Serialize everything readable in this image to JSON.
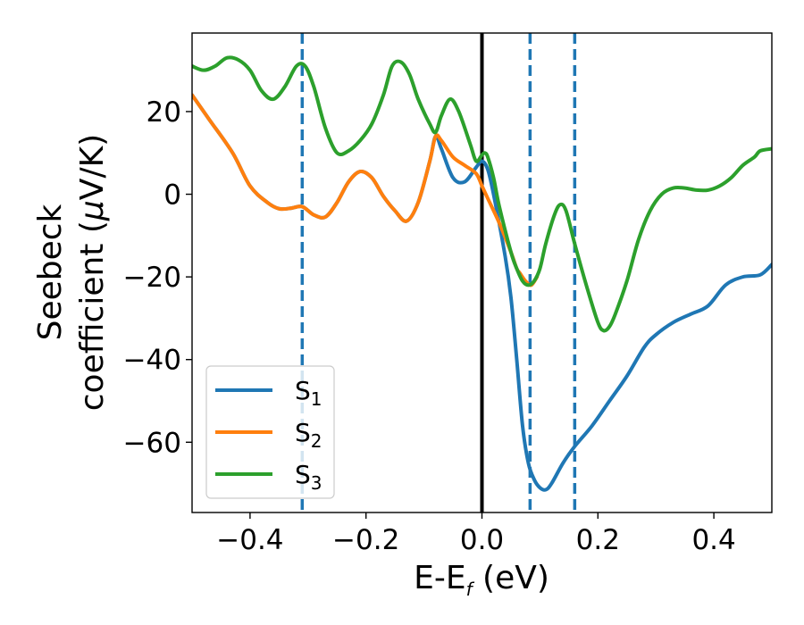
{
  "chart_data": {
    "type": "line",
    "xlabel": {
      "main": "E-E",
      "sub": "f",
      "unit": " (eV)"
    },
    "ylabel": {
      "line1": "Seebeck",
      "line2_text": "coefficient  (",
      "line2_symbol": "μ",
      "line2_unit": "V/K)"
    },
    "xlim": [
      -0.5,
      0.5
    ],
    "ylim": [
      -77,
      39
    ],
    "xticks": [
      {
        "value": -0.4,
        "label": "−0.4"
      },
      {
        "value": -0.2,
        "label": "−0.2"
      },
      {
        "value": 0.0,
        "label": "0.0"
      },
      {
        "value": 0.2,
        "label": "0.2"
      },
      {
        "value": 0.4,
        "label": "0.4"
      }
    ],
    "yticks": [
      {
        "value": 20,
        "label": "20"
      },
      {
        "value": 0,
        "label": "0"
      },
      {
        "value": -20,
        "label": "−20"
      },
      {
        "value": -40,
        "label": "−40"
      },
      {
        "value": -60,
        "label": "−60"
      }
    ],
    "grid": false,
    "legend_position": "lower-left",
    "reference_lines": [
      {
        "type": "solid",
        "x": 0.0,
        "color": "#000000"
      },
      {
        "type": "dashed",
        "x": -0.31,
        "color": "#1f77b4"
      },
      {
        "type": "dashed",
        "x": 0.083,
        "color": "#1f77b4"
      },
      {
        "type": "dashed",
        "x": 0.16,
        "color": "#1f77b4"
      }
    ],
    "series": [
      {
        "name": "S",
        "sub": "1",
        "color": "#1f77b4",
        "points": [
          [
            -0.5,
            24
          ],
          [
            -0.47,
            18
          ],
          [
            -0.43,
            10
          ],
          [
            -0.4,
            2
          ],
          [
            -0.37,
            -2
          ],
          [
            -0.35,
            -3.5
          ],
          [
            -0.33,
            -3.4
          ],
          [
            -0.31,
            -3
          ],
          [
            -0.29,
            -5
          ],
          [
            -0.27,
            -5.5
          ],
          [
            -0.25,
            -2
          ],
          [
            -0.23,
            3
          ],
          [
            -0.21,
            5.5
          ],
          [
            -0.19,
            4
          ],
          [
            -0.17,
            -0.5
          ],
          [
            -0.15,
            -4
          ],
          [
            -0.13,
            -6.5
          ],
          [
            -0.11,
            -2
          ],
          [
            -0.09,
            8
          ],
          [
            -0.08,
            14
          ],
          [
            -0.07,
            11
          ],
          [
            -0.05,
            4
          ],
          [
            -0.03,
            3
          ],
          [
            -0.01,
            6.5
          ],
          [
            0.0,
            8
          ],
          [
            0.01,
            6
          ],
          [
            0.02,
            0
          ],
          [
            0.04,
            -15
          ],
          [
            0.05,
            -25
          ],
          [
            0.06,
            -40
          ],
          [
            0.07,
            -56
          ],
          [
            0.08,
            -65
          ],
          [
            0.09,
            -69
          ],
          [
            0.1,
            -71
          ],
          [
            0.11,
            -71.5
          ],
          [
            0.12,
            -70
          ],
          [
            0.14,
            -65
          ],
          [
            0.16,
            -61
          ],
          [
            0.19,
            -56
          ],
          [
            0.22,
            -50
          ],
          [
            0.25,
            -44
          ],
          [
            0.28,
            -37
          ],
          [
            0.3,
            -34
          ],
          [
            0.33,
            -31
          ],
          [
            0.36,
            -29
          ],
          [
            0.39,
            -27
          ],
          [
            0.42,
            -22
          ],
          [
            0.45,
            -20
          ],
          [
            0.48,
            -19.5
          ],
          [
            0.5,
            -17
          ]
        ]
      },
      {
        "name": "S",
        "sub": "2",
        "color": "#ff7f0e",
        "points": [
          [
            -0.5,
            24
          ],
          [
            -0.47,
            18
          ],
          [
            -0.43,
            10
          ],
          [
            -0.4,
            2
          ],
          [
            -0.37,
            -2
          ],
          [
            -0.35,
            -3.5
          ],
          [
            -0.33,
            -3.4
          ],
          [
            -0.31,
            -3
          ],
          [
            -0.29,
            -5
          ],
          [
            -0.27,
            -5.5
          ],
          [
            -0.25,
            -2
          ],
          [
            -0.23,
            3
          ],
          [
            -0.21,
            5.5
          ],
          [
            -0.19,
            4
          ],
          [
            -0.17,
            -0.5
          ],
          [
            -0.15,
            -4
          ],
          [
            -0.13,
            -6.5
          ],
          [
            -0.11,
            -2
          ],
          [
            -0.09,
            8
          ],
          [
            -0.08,
            14
          ],
          [
            -0.07,
            13
          ],
          [
            -0.05,
            9
          ],
          [
            -0.03,
            7
          ],
          [
            -0.01,
            5
          ],
          [
            0.0,
            2
          ],
          [
            0.01,
            -1
          ],
          [
            0.03,
            -7
          ],
          [
            0.05,
            -14
          ],
          [
            0.06,
            -18
          ],
          [
            0.065,
            -19
          ],
          [
            0.075,
            -21
          ],
          [
            0.085,
            -22
          ],
          [
            0.095,
            -20
          ]
        ]
      },
      {
        "name": "S",
        "sub": "3",
        "color": "#2ca02c",
        "points": [
          [
            -0.5,
            31
          ],
          [
            -0.48,
            30
          ],
          [
            -0.46,
            31
          ],
          [
            -0.44,
            33
          ],
          [
            -0.42,
            32.5
          ],
          [
            -0.4,
            30
          ],
          [
            -0.38,
            25
          ],
          [
            -0.36,
            23
          ],
          [
            -0.34,
            26
          ],
          [
            -0.32,
            31
          ],
          [
            -0.305,
            31
          ],
          [
            -0.29,
            26
          ],
          [
            -0.27,
            16
          ],
          [
            -0.25,
            10
          ],
          [
            -0.23,
            10.5
          ],
          [
            -0.21,
            13
          ],
          [
            -0.19,
            17
          ],
          [
            -0.17,
            24
          ],
          [
            -0.155,
            31
          ],
          [
            -0.14,
            32
          ],
          [
            -0.125,
            29
          ],
          [
            -0.11,
            23
          ],
          [
            -0.09,
            17
          ],
          [
            -0.08,
            15
          ],
          [
            -0.07,
            19
          ],
          [
            -0.055,
            23
          ],
          [
            -0.04,
            20
          ],
          [
            -0.02,
            12
          ],
          [
            -0.01,
            8
          ],
          [
            0.0,
            9.5
          ],
          [
            0.005,
            10
          ],
          [
            0.01,
            9
          ],
          [
            0.02,
            4
          ],
          [
            0.03,
            -3
          ],
          [
            0.05,
            -14
          ],
          [
            0.06,
            -18
          ],
          [
            0.07,
            -21
          ],
          [
            0.08,
            -22
          ],
          [
            0.09,
            -21
          ],
          [
            0.1,
            -18
          ],
          [
            0.11,
            -12
          ],
          [
            0.125,
            -5
          ],
          [
            0.135,
            -2.5
          ],
          [
            0.145,
            -4
          ],
          [
            0.16,
            -12
          ],
          [
            0.18,
            -22
          ],
          [
            0.2,
            -31
          ],
          [
            0.21,
            -33
          ],
          [
            0.22,
            -32
          ],
          [
            0.23,
            -29
          ],
          [
            0.25,
            -21
          ],
          [
            0.27,
            -11
          ],
          [
            0.29,
            -4
          ],
          [
            0.31,
            0
          ],
          [
            0.33,
            1.5
          ],
          [
            0.35,
            1.5
          ],
          [
            0.37,
            1
          ],
          [
            0.39,
            1
          ],
          [
            0.41,
            2
          ],
          [
            0.43,
            4
          ],
          [
            0.45,
            7
          ],
          [
            0.47,
            9
          ],
          [
            0.48,
            10.5
          ],
          [
            0.5,
            11
          ]
        ]
      }
    ]
  }
}
